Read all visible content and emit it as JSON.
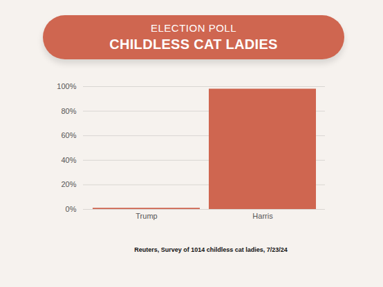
{
  "chart_data": {
    "type": "bar",
    "title": "ELECTION POLL",
    "subtitle": "CHILDLESS CAT LADIES",
    "caption": "Reuters, Survey of 1014 childless cat ladies, 7/23/24",
    "categories": [
      "Trump",
      "Harris"
    ],
    "values": [
      1,
      98
    ],
    "color": "#cf6650",
    "ylim": [
      0,
      100
    ],
    "yticks": [
      {
        "value": 0,
        "label": "0%"
      },
      {
        "value": 20,
        "label": "20%"
      },
      {
        "value": 40,
        "label": "40%"
      },
      {
        "value": 60,
        "label": "60%"
      },
      {
        "value": 80,
        "label": "80%"
      },
      {
        "value": 100,
        "label": "100%"
      }
    ],
    "grid": true
  }
}
